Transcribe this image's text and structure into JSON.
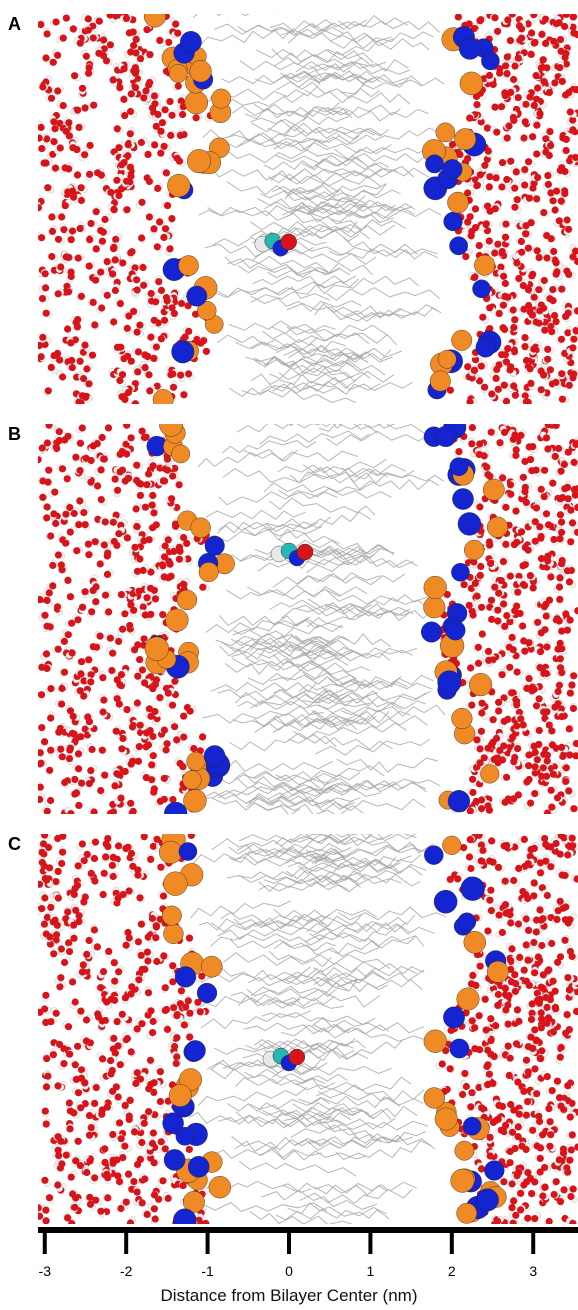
{
  "panels": [
    {
      "label": "A",
      "solute_nm": -0.2
    },
    {
      "label": "B",
      "solute_nm": 0.0
    },
    {
      "label": "C",
      "solute_nm": -0.1
    }
  ],
  "axis": {
    "title": "Distance from Bilayer Center (nm)",
    "ticks": [
      -3,
      -2,
      -1,
      0,
      1,
      2,
      3
    ],
    "tick_labels": [
      "-3",
      "-2",
      "-1",
      "0",
      "1",
      "2",
      "3"
    ],
    "range_nm": [
      -3.55,
      3.55
    ]
  },
  "colors": {
    "water_oxygen": "#d8141b",
    "water_hydrogen": "#f2f2f2",
    "phosphate": "#f08a24",
    "choline_nitrogen": "#1424d0",
    "lipid_tail": "#a9a9a9",
    "solute_carbon": "#27b7b2"
  }
}
